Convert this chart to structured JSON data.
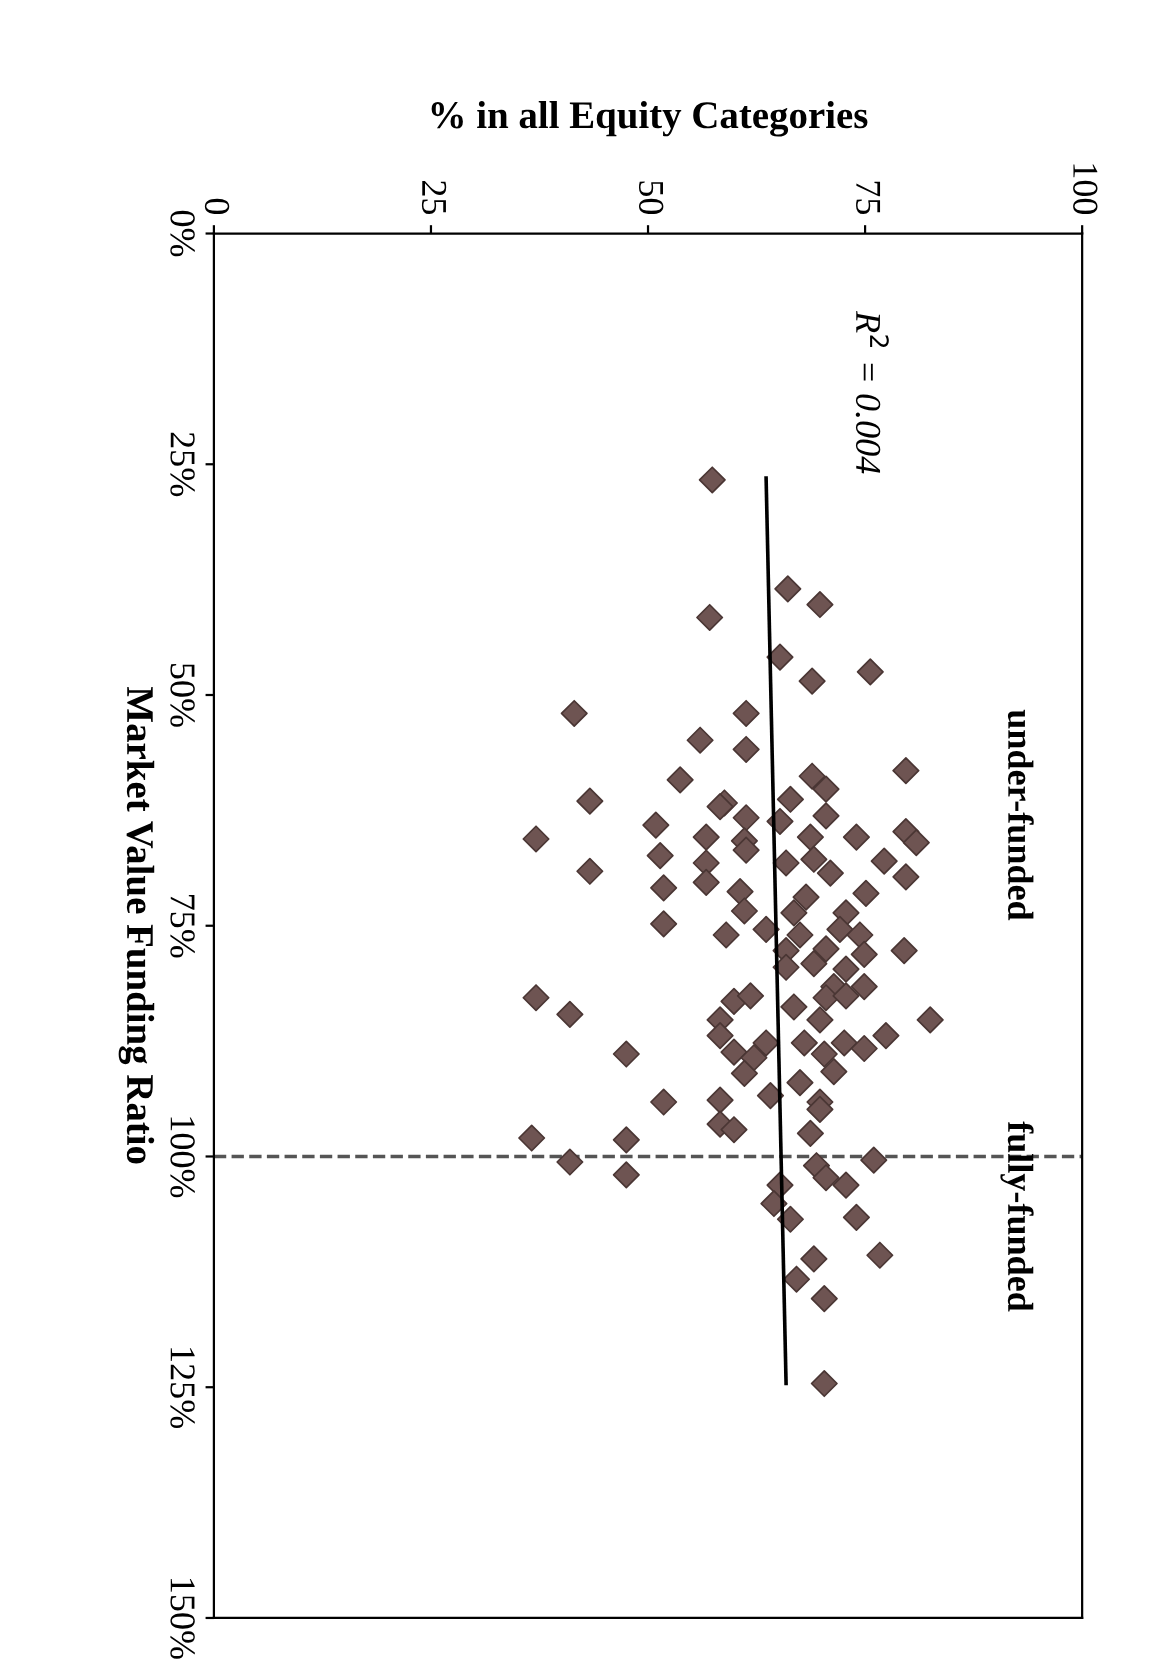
{
  "chart_data": {
    "type": "scatter",
    "xlabel": "% in all Equity Categories",
    "ylabel": "Market Value Funding Ratio",
    "ylim": [
      150,
      0
    ],
    "yticks": [
      {
        "value": 0,
        "label": "0%"
      },
      {
        "value": 25,
        "label": "25%"
      },
      {
        "value": 50,
        "label": "50%"
      },
      {
        "value": 75,
        "label": "75%"
      },
      {
        "value": 100,
        "label": "100%"
      },
      {
        "value": 125,
        "label": "125%"
      },
      {
        "value": 150,
        "label": "150%"
      }
    ],
    "xlim": [
      0,
      100
    ],
    "xticks": [
      0,
      25,
      50,
      75,
      100
    ],
    "grid": false,
    "marker": "diamond",
    "annotations": [
      "R$^{2}$ = 0.004",
      "under-funded",
      "fully-funded"
    ],
    "ref_lines": [
      {
        "axis": "y",
        "value": 100,
        "color": "#555555",
        "line_style": "dashed"
      }
    ],
    "series": [
      {
        "color": "#6e5452",
        "values": [
          26.7,
          38.5,
          40.2,
          41.6,
          45.9,
          48.5,
          47.5,
          52.0,
          52.0,
          54.9,
          55.9,
          59.2,
          58.8,
          60.2,
          58.2,
          61.3,
          61.5,
          61.7,
          64.1,
          65.6,
          62.1,
          63.3,
          63.7,
          63.1,
          65.4,
          65.8,
          65.4,
          65.4,
          64.8,
          66.0,
          67.4,
          69.1,
          68.2,
          66.8,
          68.2,
          67.8,
          69.3,
          68.0,
          69.7,
          70.9,
          70.3,
          71.3,
          71.9,
          71.5,
          73.4,
          73.6,
          73.6,
          74.8,
          76.0,
          75.4,
          76.0,
          75.4,
          76.0,
          77.7,
          77.7,
          77.5,
          78.1,
          79.5,
          79.1,
          79.7,
          81.6,
          81.6,
          82.8,
          83.2,
          82.6,
          83.8,
          82.8,
          82.6,
          84.6,
          85.2,
          85.2,
          85.2,
          86.9,
          87.7,
          87.7,
          87.7,
          86.9,
          88.3,
          88.9,
          88.7,
          89.3,
          88.9,
          91.0,
          92.0,
          90.8,
          93.9,
          94.1,
          93.4,
          94.1,
          94.9,
          96.5,
          97.1,
          97.5,
          98.0,
          98.2,
          100.6,
          102.0,
          101.0,
          102.3,
          100.4,
          103.1,
          103.1,
          105.1,
          106.8,
          106.6,
          110.7,
          111.1,
          113.3,
          115.4,
          124.6
        ],
        "x": [
          57.4,
          66.1,
          69.8,
          57.1,
          65.2,
          68.9,
          75.6,
          41.5,
          61.3,
          56.0,
          61.3,
          53.7,
          68.9,
          70.5,
          79.7,
          66.4,
          43.3,
          58.8,
          50.9,
          37.1,
          58.3,
          61.3,
          65.2,
          70.5,
          56.7,
          61.1,
          68.7,
          74.0,
          79.7,
          80.9,
          51.4,
          43.3,
          56.7,
          61.3,
          65.9,
          69.1,
          71.0,
          77.2,
          79.7,
          51.8,
          56.7,
          60.6,
          68.2,
          75.1,
          61.1,
          66.8,
          72.8,
          51.8,
          59.0,
          63.6,
          67.5,
          72.1,
          74.4,
          79.5,
          65.9,
          70.5,
          74.9,
          65.9,
          69.1,
          72.8,
          71.4,
          74.9,
          37.1,
          59.9,
          61.8,
          66.8,
          70.5,
          72.8,
          41.0,
          82.5,
          58.3,
          69.8,
          58.3,
          63.6,
          68.0,
          72.6,
          77.4,
          74.9,
          47.5,
          59.9,
          62.2,
          70.3,
          61.1,
          67.5,
          71.4,
          58.3,
          51.8,
          64.1,
          69.8,
          69.8,
          58.3,
          59.9,
          68.7,
          36.6,
          47.5,
          41.0,
          47.5,
          69.4,
          70.5,
          76.0,
          72.8,
          65.2,
          64.5,
          66.4,
          74.0,
          76.7,
          69.1,
          67.1,
          70.3,
          70.3
        ]
      },
      {
        "type": "line",
        "color": "#000000",
        "marker": "none",
        "x": [
          63.6,
          65.9
        ],
        "values": [
          26.5,
          124.6
        ]
      }
    ]
  }
}
